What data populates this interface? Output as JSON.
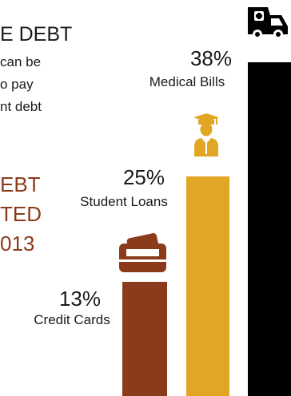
{
  "infographic": {
    "heading": "E DEBT",
    "description_lines": [
      "can be",
      "o pay",
      "nt debt"
    ],
    "highlight_lines": [
      "EBT",
      "TED",
      "013"
    ]
  },
  "colors": {
    "medical": "#000000",
    "student": "#e0a624",
    "credit": "#8b3b1c",
    "highlight_text": "#8b3b1c"
  },
  "icons": {
    "medical": "ambulance-icon",
    "student": "graduate-icon",
    "credit": "credit-card-icon"
  },
  "chart_data": {
    "type": "bar",
    "categories": [
      "Credit Cards",
      "Student Loans",
      "Medical Bills"
    ],
    "values": [
      13,
      25,
      38
    ],
    "data_labels": [
      "13%",
      "25%",
      "38%"
    ],
    "ylim": [
      0,
      40
    ]
  }
}
